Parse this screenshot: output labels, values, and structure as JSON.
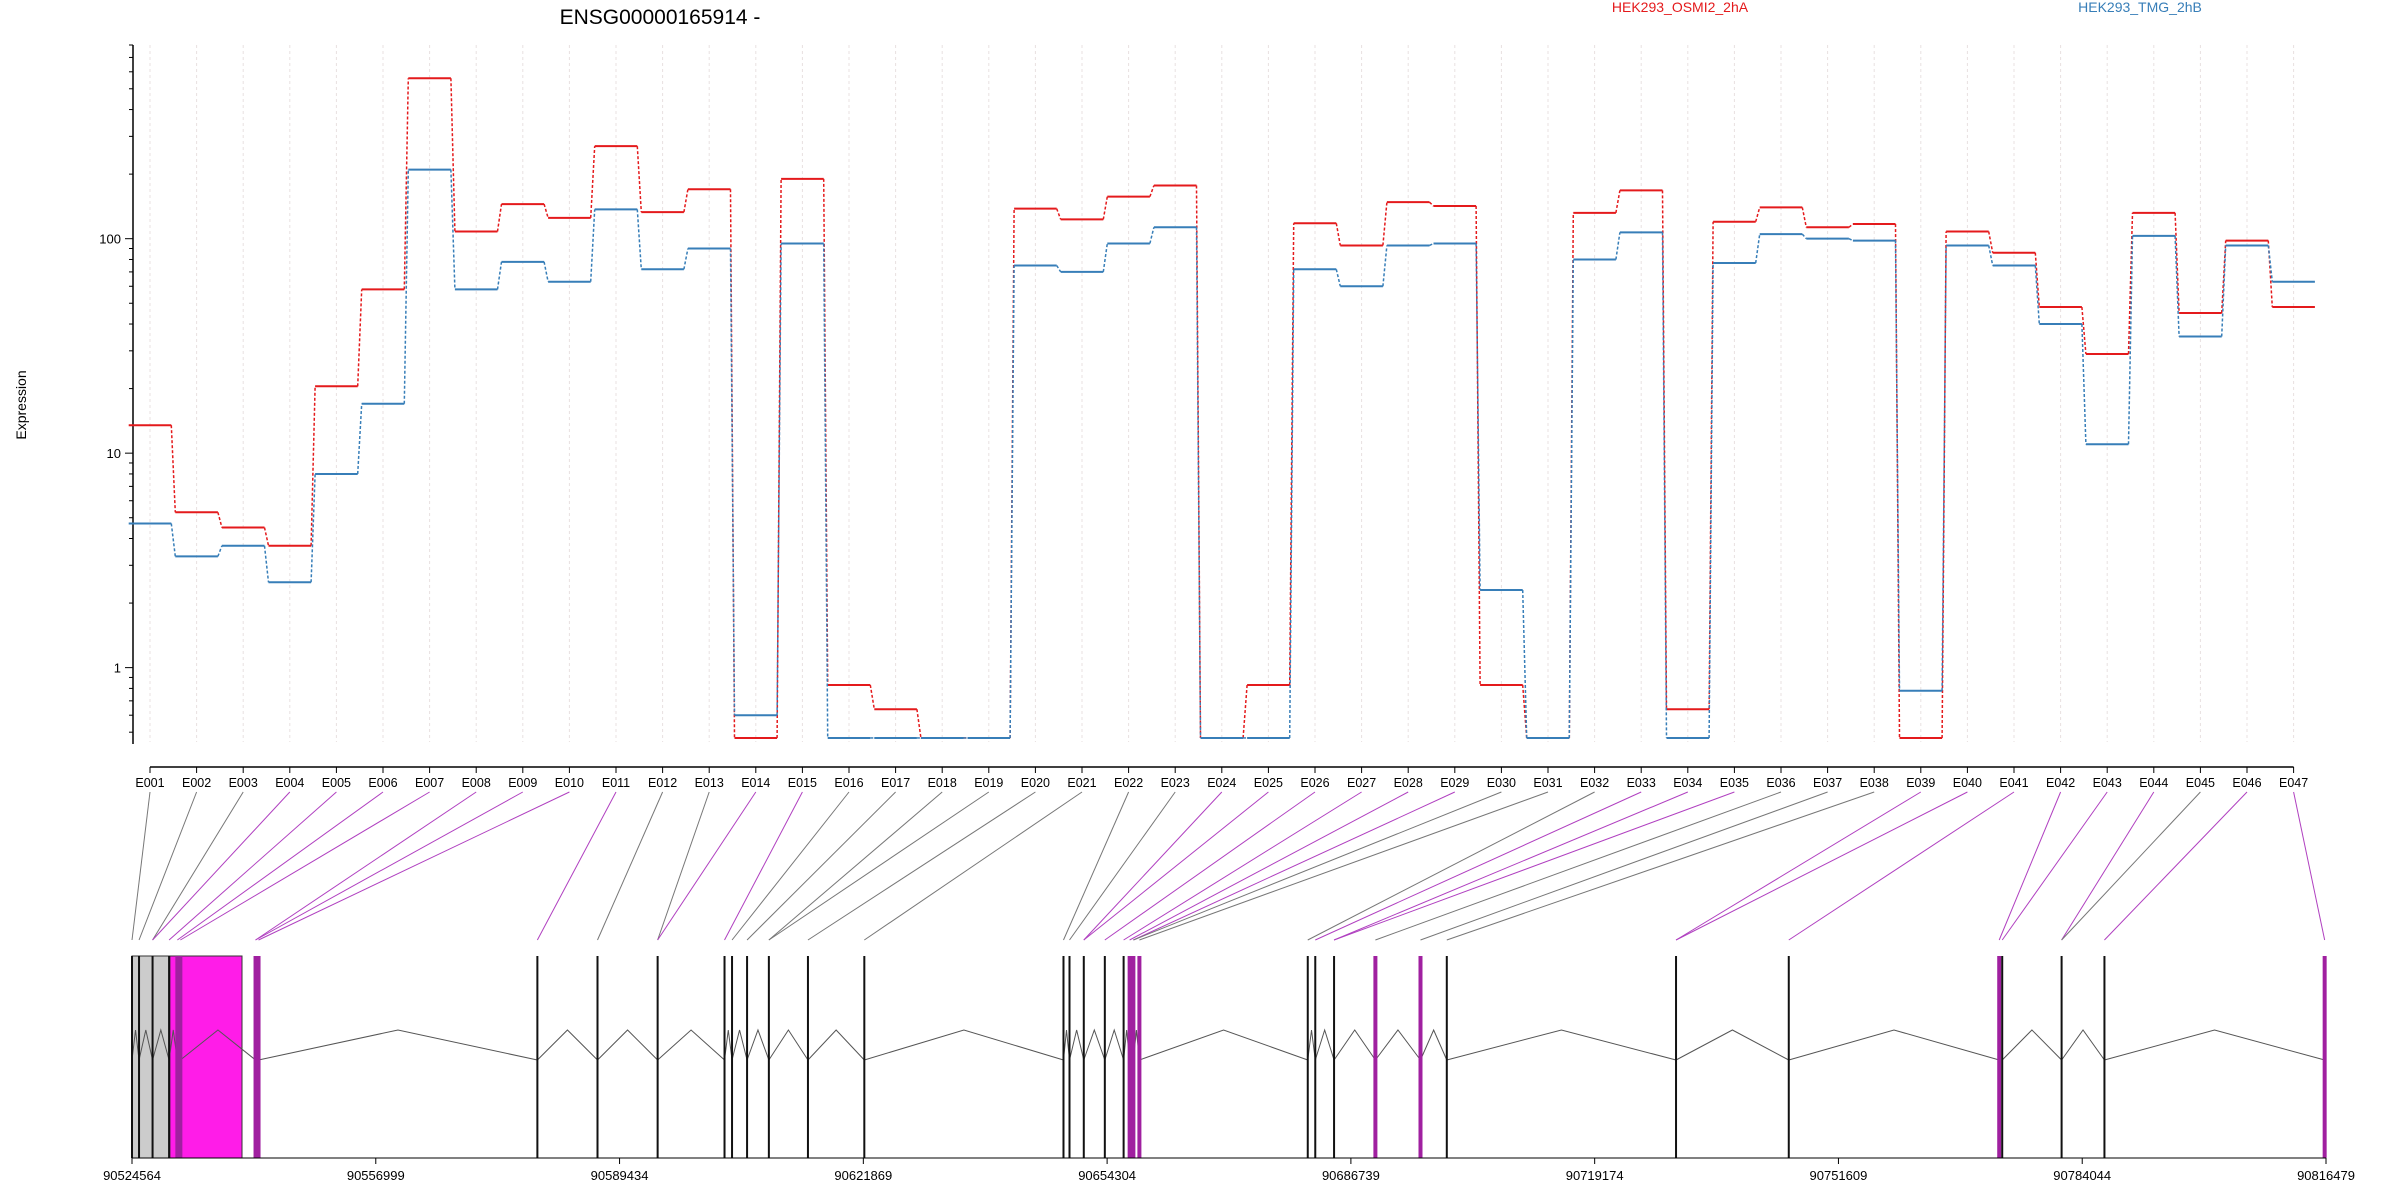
{
  "chart_data": {
    "type": "line",
    "title": "ENSG00000165914 -",
    "ylabel": "Expression",
    "yscale": "log",
    "ylim": [
      0.45,
      800
    ],
    "yticks": [
      {
        "value": 1,
        "label": "1"
      },
      {
        "value": 10,
        "label": "10"
      },
      {
        "value": 100,
        "label": "100"
      }
    ],
    "categories": [
      "E001",
      "E002",
      "E003",
      "E004",
      "E005",
      "E006",
      "E007",
      "E008",
      "E009",
      "E010",
      "E011",
      "E012",
      "E013",
      "E014",
      "E015",
      "E016",
      "E017",
      "E018",
      "E019",
      "E020",
      "E021",
      "E022",
      "E023",
      "E024",
      "E025",
      "E026",
      "E027",
      "E028",
      "E029",
      "E030",
      "E031",
      "E032",
      "E033",
      "E034",
      "E035",
      "E036",
      "E037",
      "E038",
      "E039",
      "E040",
      "E041",
      "E042",
      "E043",
      "E044",
      "E045",
      "E046",
      "E047"
    ],
    "series": [
      {
        "name": "HEK293_OSMI2_2hA",
        "color": "#e41a1c",
        "values": [
          13.5,
          5.3,
          4.5,
          3.7,
          20.5,
          58,
          560,
          108,
          145,
          125,
          270,
          133,
          170,
          0.47,
          190,
          0.83,
          0.64,
          0.47,
          0.47,
          138,
          123,
          157,
          177,
          0.47,
          0.83,
          118,
          93,
          148,
          142,
          0.83,
          0.47,
          132,
          168,
          0.64,
          120,
          140,
          113,
          117,
          0.47,
          108,
          86,
          48,
          29,
          132,
          45,
          98,
          48
        ]
      },
      {
        "name": "HEK293_TMG_2hB",
        "color": "#377eb8",
        "values": [
          4.7,
          3.3,
          3.7,
          2.5,
          8,
          17,
          210,
          58,
          78,
          63,
          137,
          72,
          90,
          0.6,
          95,
          0.47,
          0.47,
          0.47,
          0.47,
          75,
          70,
          95,
          113,
          0.47,
          0.47,
          72,
          60,
          93,
          95,
          2.3,
          0.47,
          80,
          107,
          0.47,
          77,
          105,
          100,
          98,
          0.78,
          93,
          75,
          40,
          11,
          103,
          35,
          93,
          63
        ]
      }
    ],
    "exon_tracks": [
      {
        "exon": "E001",
        "highlight": false
      },
      {
        "exon": "E002",
        "highlight": false
      },
      {
        "exon": "E003",
        "highlight": false
      },
      {
        "exon": "E004",
        "highlight": true
      },
      {
        "exon": "E005",
        "highlight": true
      },
      {
        "exon": "E006",
        "highlight": true
      },
      {
        "exon": "E007",
        "highlight": true
      },
      {
        "exon": "E008",
        "highlight": true
      },
      {
        "exon": "E009",
        "highlight": true
      },
      {
        "exon": "E010",
        "highlight": true
      },
      {
        "exon": "E011",
        "highlight": true
      },
      {
        "exon": "E012",
        "highlight": false
      },
      {
        "exon": "E013",
        "highlight": false
      },
      {
        "exon": "E014",
        "highlight": true
      },
      {
        "exon": "E015",
        "highlight": true
      },
      {
        "exon": "E016",
        "highlight": false
      },
      {
        "exon": "E017",
        "highlight": false
      },
      {
        "exon": "E018",
        "highlight": false
      },
      {
        "exon": "E019",
        "highlight": false
      },
      {
        "exon": "E020",
        "highlight": false
      },
      {
        "exon": "E021",
        "highlight": false
      },
      {
        "exon": "E022",
        "highlight": false
      },
      {
        "exon": "E023",
        "highlight": false
      },
      {
        "exon": "E024",
        "highlight": true
      },
      {
        "exon": "E025",
        "highlight": true
      },
      {
        "exon": "E026",
        "highlight": true
      },
      {
        "exon": "E027",
        "highlight": true
      },
      {
        "exon": "E028",
        "highlight": true
      },
      {
        "exon": "E029",
        "highlight": true
      },
      {
        "exon": "E030",
        "highlight": false
      },
      {
        "exon": "E031",
        "highlight": false
      },
      {
        "exon": "E032",
        "highlight": false
      },
      {
        "exon": "E033",
        "highlight": true
      },
      {
        "exon": "E034",
        "highlight": true
      },
      {
        "exon": "E035",
        "highlight": true
      },
      {
        "exon": "E036",
        "highlight": false
      },
      {
        "exon": "E037",
        "highlight": false
      },
      {
        "exon": "E038",
        "highlight": false
      },
      {
        "exon": "E039",
        "highlight": true
      },
      {
        "exon": "E040",
        "highlight": true
      },
      {
        "exon": "E041",
        "highlight": true
      },
      {
        "exon": "E042",
        "highlight": true
      },
      {
        "exon": "E043",
        "highlight": true
      },
      {
        "exon": "E044",
        "highlight": true
      },
      {
        "exon": "E045",
        "highlight": false
      },
      {
        "exon": "E046",
        "highlight": true
      },
      {
        "exon": "E047",
        "highlight": true
      }
    ],
    "genomic_axis": {
      "start": 90524564,
      "end": 90816479,
      "tick_labels": [
        "90524564",
        "90556999",
        "90589434",
        "90621869",
        "90654304",
        "90686739",
        "90719174",
        "90751609",
        "90784044",
        "90816479"
      ]
    },
    "exon_positions": [
      90524564,
      90525500,
      90527300,
      90529500,
      90530600,
      90531000,
      90541000,
      90541400,
      90578500,
      90586500,
      90594500,
      90603400,
      90604400,
      90606400,
      90609300,
      90614500,
      90622000,
      90648500,
      90649300,
      90651200,
      90654000,
      90656500,
      90657300,
      90657800,
      90658600,
      90681000,
      90682000,
      90684500,
      90690000,
      90696000,
      90699500,
      90730000,
      90745000,
      90773000,
      90773400,
      90781300,
      90787000,
      90816300
    ],
    "colors": {
      "highlight": "#ff1ce8",
      "gray_block": "#cccccc",
      "connector": "#777777",
      "connector_highlight": "#b040c0",
      "grid": "#e8e0e0"
    }
  }
}
